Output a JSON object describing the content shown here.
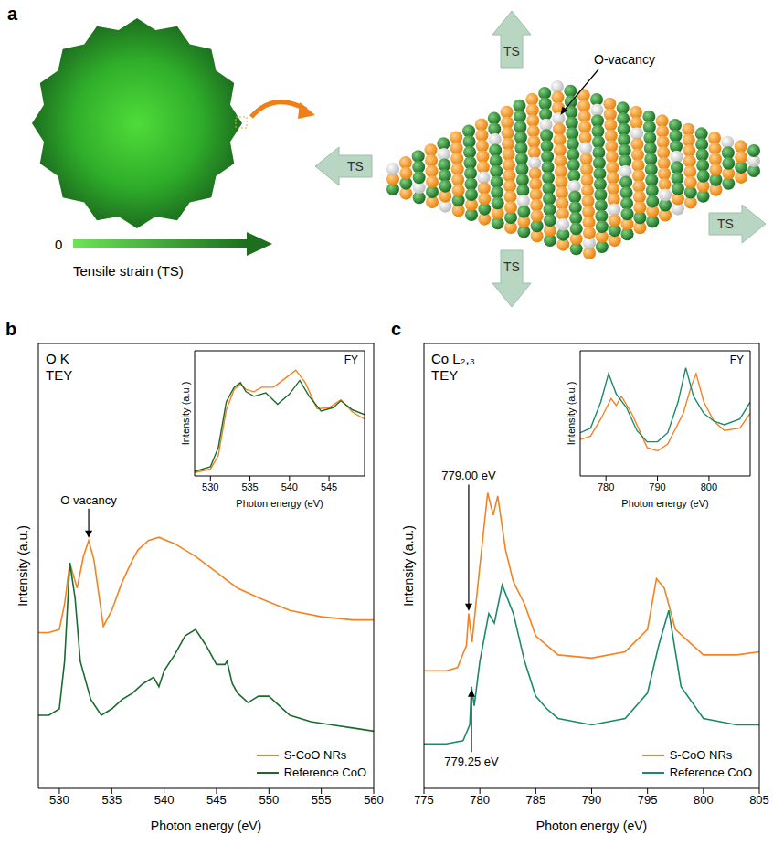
{
  "diagram": {
    "letter": "a",
    "strain_scale_start": "0",
    "strain_scale_label": "Tensile strain (TS)",
    "arrow_label": "TS",
    "vacancy_label": "O-vacancy"
  },
  "chart_data": [
    {
      "letter": "b",
      "type": "line",
      "title": "O K",
      "subtitle": "TEY",
      "x_label": "Photon energy (eV)",
      "y_label": "Intensity (a.u.)",
      "xlim": [
        528,
        560
      ],
      "xticks": [
        530,
        535,
        540,
        545,
        550,
        555,
        560
      ],
      "ylim": [
        0,
        14
      ],
      "tick_labels": "x",
      "legend": "lower right",
      "series": [
        {
          "name": "S-CoO NRs",
          "color": "#f58220",
          "x": [
            528,
            529,
            530,
            530.5,
            531,
            531.7,
            532.3,
            532.8,
            533.3,
            534.2,
            535,
            536,
            537,
            537.5,
            538.5,
            539.5,
            541,
            543,
            545,
            547,
            549,
            552,
            555,
            558,
            560
          ],
          "values": [
            4.9,
            4.9,
            5.0,
            5.8,
            7.1,
            6.3,
            7.3,
            7.8,
            7.2,
            5.1,
            5.6,
            6.5,
            7.2,
            7.5,
            7.8,
            7.9,
            7.7,
            7.3,
            6.8,
            6.3,
            6.0,
            5.6,
            5.4,
            5.3,
            5.3
          ]
        },
        {
          "name": "Reference CoO",
          "color": "#1b6b2f",
          "x": [
            528,
            529,
            530,
            530.5,
            531,
            531.5,
            532,
            533,
            534,
            535,
            536,
            537,
            538,
            539,
            539.5,
            540,
            541,
            542,
            543,
            544,
            545,
            545.8,
            546,
            546.5,
            547,
            548,
            549,
            550,
            551,
            552,
            554,
            556,
            558,
            560
          ],
          "values": [
            2.3,
            2.3,
            2.5,
            4.0,
            7.1,
            6.0,
            4.0,
            2.8,
            2.3,
            2.5,
            2.8,
            3.0,
            3.3,
            3.5,
            3.2,
            3.7,
            4.2,
            4.8,
            5.0,
            4.5,
            3.9,
            3.9,
            4.0,
            3.3,
            3.0,
            2.7,
            2.9,
            2.9,
            2.6,
            2.3,
            2.1,
            2.0,
            1.9,
            1.8
          ]
        }
      ],
      "annotations": [
        {
          "text": "O vacancy",
          "x": 532.8,
          "y": 7.8,
          "series": "S-CoO NRs"
        }
      ],
      "inset": {
        "type": "line",
        "title": "FY",
        "x_label": "Photon energy (eV)",
        "y_label": "Intensity (a.u.)",
        "xlim": [
          528,
          549.5
        ],
        "xticks": [
          530,
          535,
          540,
          545
        ],
        "ylim": [
          0,
          11
        ],
        "tick_labels": "x",
        "series": [
          {
            "name": "S-CoO NRs",
            "color": "#f58220",
            "x": [
              528,
              530,
              531,
              532,
              533,
              533.8,
              534.5,
              535.5,
              536.5,
              538,
              539.5,
              540.8,
              542,
              543.5,
              545,
              546.5,
              548,
              549.5
            ],
            "values": [
              0.3,
              0.6,
              1.8,
              5.8,
              7.6,
              8.1,
              7.6,
              7.4,
              7.8,
              7.8,
              8.6,
              9.3,
              8.2,
              5.9,
              6.0,
              6.7,
              5.6,
              5.0
            ]
          },
          {
            "name": "Reference CoO",
            "color": "#1b6b2f",
            "x": [
              528,
              530,
              531,
              532,
              533,
              533.8,
              534.5,
              535.5,
              537,
              538.5,
              540,
              541.3,
              542.5,
              544,
              545.5,
              546.5,
              548,
              549.5
            ],
            "values": [
              0.4,
              0.8,
              2.5,
              6.5,
              7.8,
              8.2,
              7.4,
              7.0,
              7.3,
              6.3,
              7.2,
              8.4,
              7.0,
              5.7,
              6.0,
              6.6,
              5.8,
              5.4
            ]
          }
        ]
      }
    },
    {
      "letter": "c",
      "type": "line",
      "title": "Co L₂,₃",
      "subtitle": "TEY",
      "x_label": "Photon energy (eV)",
      "y_label": "Intensity (a.u.)",
      "xlim": [
        775,
        805
      ],
      "xticks": [
        775,
        780,
        785,
        790,
        795,
        800,
        805
      ],
      "ylim": [
        0,
        14
      ],
      "tick_labels": "x",
      "legend": "lower right",
      "series": [
        {
          "name": "S-CoO NRs",
          "color": "#f58220",
          "x": [
            775,
            777,
            778,
            778.8,
            779.0,
            779.3,
            780,
            780.7,
            781.2,
            781.6,
            782.3,
            783,
            784,
            785,
            787,
            790,
            793,
            795,
            795.8,
            796.5,
            797.5,
            800,
            803,
            805
          ],
          "values": [
            3.7,
            3.7,
            3.8,
            4.5,
            5.5,
            4.6,
            7.0,
            9.3,
            8.6,
            9.2,
            7.5,
            6.5,
            5.8,
            4.8,
            4.2,
            4.1,
            4.3,
            5.0,
            6.6,
            6.3,
            5.0,
            4.2,
            4.2,
            4.3
          ]
        },
        {
          "name": "Reference CoO",
          "color": "#1a8a6a",
          "x": [
            775,
            777,
            778.5,
            779.1,
            779.25,
            779.5,
            780,
            780.8,
            781.3,
            782,
            783,
            784,
            785,
            786,
            787,
            790,
            793,
            795,
            796,
            796.9,
            798,
            800,
            803,
            805
          ],
          "values": [
            1.4,
            1.4,
            1.5,
            2.0,
            3.2,
            2.6,
            4.0,
            5.5,
            5.2,
            6.4,
            5.5,
            4.0,
            2.9,
            2.5,
            2.2,
            2.0,
            2.2,
            3.0,
            4.5,
            5.6,
            3.2,
            2.2,
            2.0,
            2.0
          ]
        }
      ],
      "annotations": [
        {
          "text": "779.00 eV",
          "x": 779.0,
          "y": 5.5,
          "series": "S-CoO NRs"
        },
        {
          "text": "779.25 eV",
          "x": 779.25,
          "y": 3.2,
          "series": "Reference CoO"
        }
      ],
      "inset": {
        "type": "line",
        "title": "FY",
        "x_label": "Photon energy (eV)",
        "y_label": "Intensity (a.u.)",
        "xlim": [
          775,
          808
        ],
        "xticks": [
          780,
          790,
          800
        ],
        "ylim": [
          0,
          11
        ],
        "tick_labels": "x",
        "series": [
          {
            "name": "S-CoO NRs",
            "color": "#f58220",
            "x": [
              775,
              777,
              779,
              781,
              782,
              783,
              785,
              788,
              790,
              792,
              795,
              796.5,
              797.5,
              799,
              801,
              803,
              806,
              808
            ],
            "values": [
              3.2,
              3.5,
              5.0,
              6.8,
              6.2,
              7.0,
              5.5,
              2.5,
              2.2,
              2.8,
              5.5,
              7.8,
              9.0,
              6.5,
              4.8,
              4.0,
              4.2,
              5.5
            ]
          },
          {
            "name": "Reference CoO",
            "color": "#1a8a6a",
            "x": [
              775,
              777,
              779,
              780.5,
              782,
              784,
              786,
              788,
              790,
              792,
              794,
              795.5,
              797,
              799,
              801,
              803,
              806,
              808
            ],
            "values": [
              3.8,
              4.2,
              6.5,
              9.0,
              7.2,
              6.0,
              4.0,
              3.0,
              3.0,
              3.8,
              6.5,
              9.5,
              7.0,
              5.5,
              4.8,
              4.5,
              5.0,
              6.5
            ]
          }
        ]
      }
    }
  ]
}
